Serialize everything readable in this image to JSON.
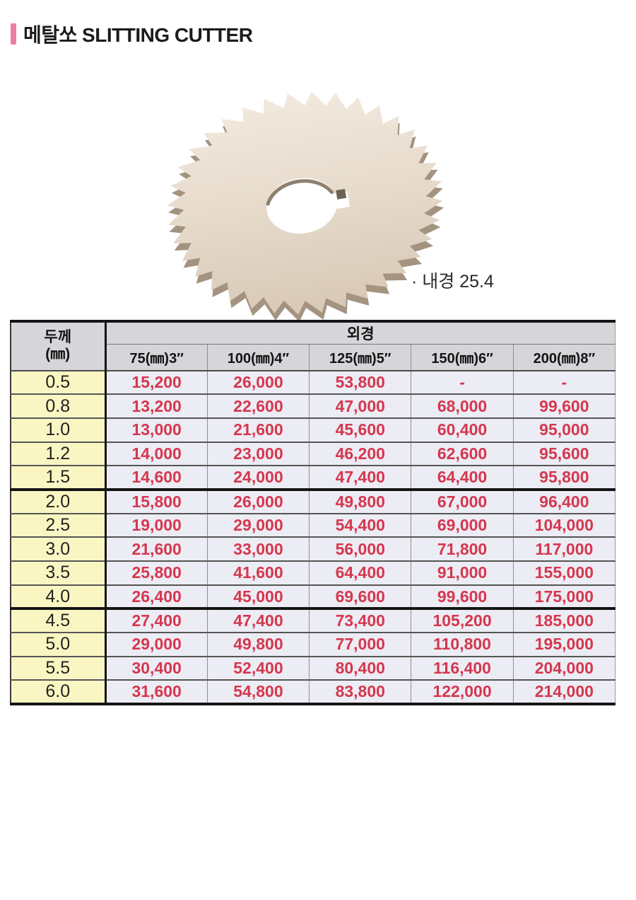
{
  "title": "메탈쏘 SLITTING CUTTER",
  "figure": {
    "bore_note": "· 내경 25.4",
    "blade": {
      "teeth": 36,
      "surface_light": "#f2e9de",
      "surface_mid": "#e6dacb",
      "surface_dark": "#d8c8b6",
      "side_edge": "#a3937f",
      "rim_shadow": "#8e8170",
      "key_tab": "#6f6354",
      "hole_fill": "#ffffff"
    }
  },
  "table": {
    "corner_header_line1": "두께",
    "corner_header_line2": "(㎜)",
    "span_header": "외경",
    "columns": [
      "75(㎜)3″",
      "100(㎜)4″",
      "125(㎜)5″",
      "150(㎜)6″",
      "200(㎜)8″"
    ],
    "rows": [
      {
        "thickness": "0.5",
        "prices": [
          "15,200",
          "26,000",
          "53,800",
          "-",
          "-"
        ]
      },
      {
        "thickness": "0.8",
        "prices": [
          "13,200",
          "22,600",
          "47,000",
          "68,000",
          "99,600"
        ]
      },
      {
        "thickness": "1.0",
        "prices": [
          "13,000",
          "21,600",
          "45,600",
          "60,400",
          "95,000"
        ]
      },
      {
        "thickness": "1.2",
        "prices": [
          "14,000",
          "23,000",
          "46,200",
          "62,600",
          "95,600"
        ]
      },
      {
        "thickness": "1.5",
        "prices": [
          "14,600",
          "24,000",
          "47,400",
          "64,400",
          "95,800"
        ]
      },
      {
        "thickness": "2.0",
        "prices": [
          "15,800",
          "26,000",
          "49,800",
          "67,000",
          "96,400"
        ]
      },
      {
        "thickness": "2.5",
        "prices": [
          "19,000",
          "29,000",
          "54,400",
          "69,000",
          "104,000"
        ]
      },
      {
        "thickness": "3.0",
        "prices": [
          "21,600",
          "33,000",
          "56,000",
          "71,800",
          "117,000"
        ]
      },
      {
        "thickness": "3.5",
        "prices": [
          "25,800",
          "41,600",
          "64,400",
          "91,000",
          "155,000"
        ]
      },
      {
        "thickness": "4.0",
        "prices": [
          "26,400",
          "45,000",
          "69,600",
          "99,600",
          "175,000"
        ]
      },
      {
        "thickness": "4.5",
        "prices": [
          "27,400",
          "47,400",
          "73,400",
          "105,200",
          "185,000"
        ]
      },
      {
        "thickness": "5.0",
        "prices": [
          "29,000",
          "49,800",
          "77,000",
          "110,800",
          "195,000"
        ]
      },
      {
        "thickness": "5.5",
        "prices": [
          "30,400",
          "52,400",
          "80,400",
          "116,400",
          "204,000"
        ]
      },
      {
        "thickness": "6.0",
        "prices": [
          "31,600",
          "54,800",
          "83,800",
          "122,000",
          "214,000"
        ]
      }
    ],
    "group_breaks": [
      5,
      10
    ]
  },
  "colors": {
    "accent_pink": "#ef7aa5",
    "price_red": "#d5374e",
    "header_gray": "#d6d6da",
    "row_label_yellow": "#faf6c4",
    "cell_lavender": "#ececf4"
  }
}
